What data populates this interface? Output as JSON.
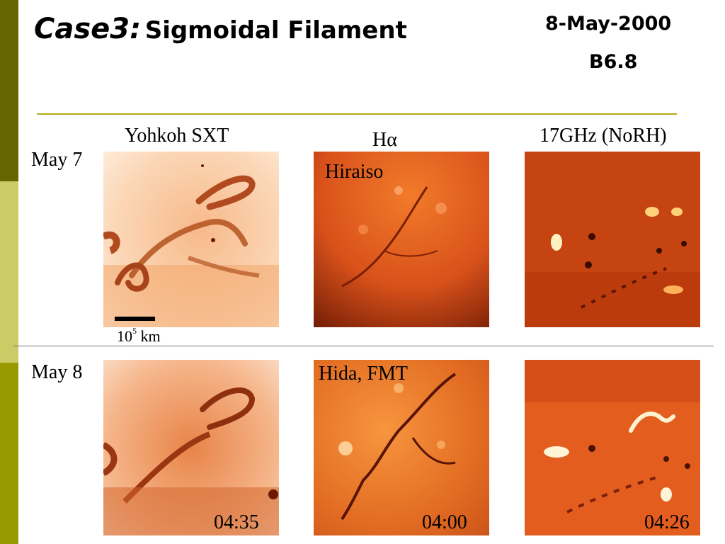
{
  "slide": {
    "title_case": "Case3:",
    "title_sub": "Sigmoidal Filament",
    "date": "8-May-2000",
    "flare_class": "B6.8",
    "accent_colors": [
      "#666600",
      "#cccc66",
      "#999900",
      "#b2a91a"
    ]
  },
  "columns": {
    "sxt": "Yohkoh SXT",
    "halpha": "Hα",
    "radio": "17GHz (NoRH)"
  },
  "rows": {
    "may7": "May 7",
    "may8": "May 8"
  },
  "observatories": {
    "may7_halpha": "Hiraiso",
    "may8_halpha": "Hida, FMT"
  },
  "scale": {
    "base": "10",
    "exp": "5",
    "unit": "km"
  },
  "times": {
    "sxt": "04:35",
    "halpha": "04:00",
    "radio": "04:26"
  }
}
